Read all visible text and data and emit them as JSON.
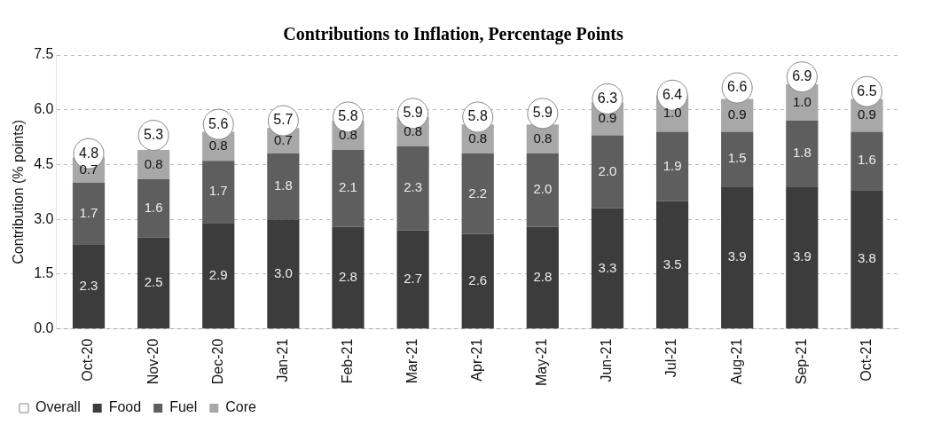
{
  "chart_data": {
    "type": "bar",
    "title": "Contributions to Inflation, Percentage Points",
    "ylabel": "Contribution (% points)",
    "categories": [
      "Oct-20",
      "Nov-20",
      "Dec-20",
      "Jan-21",
      "Feb-21",
      "Mar-21",
      "Apr-21",
      "May-21",
      "Jun-21",
      "Jul-21",
      "Aug-21",
      "Sep-21",
      "Oct-21"
    ],
    "series": [
      {
        "name": "Food",
        "color": "#3c3c3c",
        "values": [
          2.3,
          2.5,
          2.9,
          3.0,
          2.8,
          2.7,
          2.6,
          2.8,
          3.3,
          3.5,
          3.9,
          3.9,
          3.8
        ],
        "value_labels": [
          "2.3",
          "2.5",
          "2.9",
          "3.0",
          "2.8",
          "2.7",
          "2.6",
          "2.8",
          "3.3",
          "3.5",
          "3.9",
          "3.9",
          "3.8"
        ]
      },
      {
        "name": "Fuel",
        "color": "#5e5e5e",
        "values": [
          1.7,
          1.6,
          1.7,
          1.8,
          2.1,
          2.3,
          2.2,
          2.0,
          2.0,
          1.9,
          1.5,
          1.8,
          1.6
        ],
        "value_labels": [
          "1.7",
          "1.6",
          "1.7",
          "1.8",
          "2.1",
          "2.3",
          "2.2",
          "2.0",
          "2.0",
          "1.9",
          "1.5",
          "1.8",
          "1.6"
        ]
      },
      {
        "name": "Core",
        "color": "#a8a8a8",
        "values": [
          0.7,
          0.8,
          0.8,
          0.7,
          0.8,
          0.8,
          0.8,
          0.8,
          0.9,
          1.0,
          0.9,
          1.0,
          0.9
        ],
        "value_labels": [
          "0.7",
          "0.8",
          "0.8",
          "0.7",
          "0.8",
          "0.8",
          "0.8",
          "0.8",
          "0.9",
          "1.0",
          "0.9",
          "1.0",
          "0.9"
        ]
      },
      {
        "name": "Overall",
        "type": "scatter",
        "color": "#ffffff",
        "x": [
          "Oct-20",
          "Nov-20",
          "Dec-20",
          "Jan-21",
          "Feb-21",
          "Mar-21",
          "Apr-21",
          "May-21",
          "Jun-21",
          "Jul-21",
          "Aug-21",
          "Sep-21",
          "Oct-21"
        ],
        "values": [
          4.8,
          5.3,
          5.6,
          5.7,
          5.8,
          5.9,
          5.8,
          5.9,
          6.3,
          6.4,
          6.6,
          6.9,
          6.5
        ],
        "value_labels": [
          "4.8",
          "5.3",
          "5.6",
          "5.7",
          "5.8",
          "5.9",
          "5.8",
          "5.9",
          "6.3",
          "6.4",
          "6.6",
          "6.9",
          "6.5"
        ]
      }
    ],
    "stacked": true,
    "ylim": [
      0,
      7.5
    ],
    "yticks": [
      {
        "value": 0,
        "label": "0.0"
      },
      1.5,
      {
        "value": 3,
        "label": "3.0"
      },
      4.5,
      {
        "value": 6,
        "label": "6.0"
      },
      7.5
    ],
    "grid": "y",
    "legend": "bottom"
  }
}
